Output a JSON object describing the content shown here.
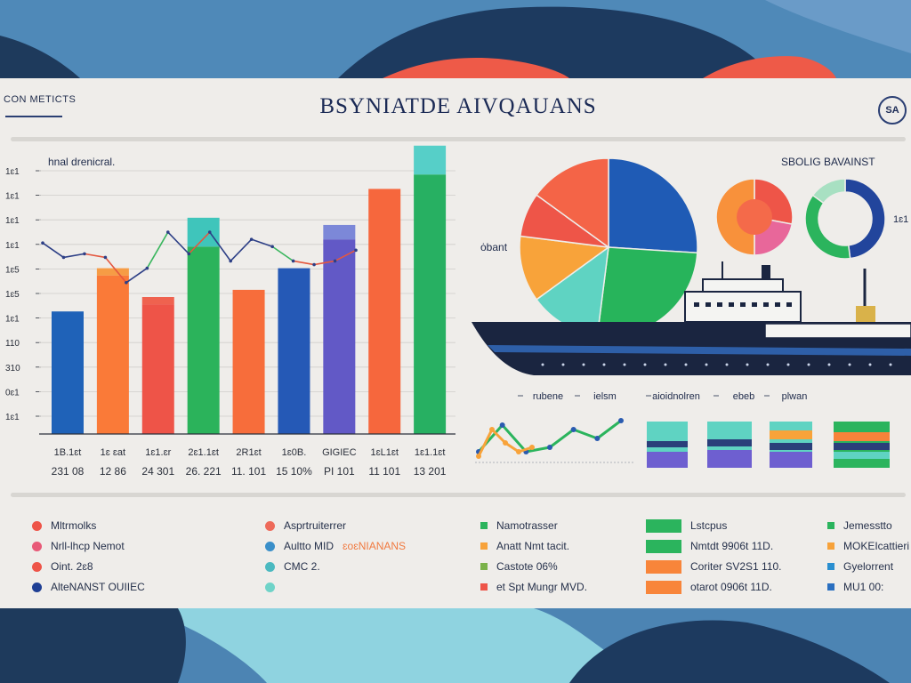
{
  "header": {
    "label": "CON METICTS",
    "title": "BSYNIATDE AIVQAUANS",
    "badge": "SA"
  },
  "bar_chart": {
    "title": "hnal drenicral.",
    "y_ticks": [
      "1ɛ1",
      "1ɛ1",
      "1ɛ1",
      "1ɛ1",
      "1ɛ5",
      "1ɛ5",
      "1ɛ1",
      "110",
      "310",
      "0ɛ1",
      "1ɛ1"
    ]
  },
  "right_panel": {
    "side_label": "ȯbant",
    "chart_title": "SBOLIG BAVAINST",
    "side_code": "1ɛ1",
    "bottom_labels": [
      "rubene",
      "ielsm",
      "aioidnolren",
      "ebeb",
      "plwan"
    ]
  },
  "chart_data": [
    {
      "type": "bar",
      "title": "hnal drenicral.",
      "categories": [
        "1B.1ɛt",
        "1ɛ ɛat",
        "1ɛ1.ɛr",
        "2ɛ1.1ɛt",
        "2R1ɛt",
        "1ɛ0B.",
        "GIGIEC",
        "1ɛL1ɛt",
        "1ɛ1.1ɛt"
      ],
      "categories_line2": [
        "231 08",
        "12 86",
        "24 301",
        "26. 221",
        "11. 101",
        "15 10%",
        "PI 101",
        "11 101",
        "13 201"
      ],
      "series": [
        {
          "values": [
            17,
            22,
            18,
            26,
            20,
            23,
            27,
            34,
            36
          ]
        },
        {
          "values": [
            0,
            1,
            1,
            4,
            0,
            0,
            2,
            0,
            4
          ]
        }
      ],
      "colors_primary": [
        "#1f62b8",
        "#fa7a38",
        "#ee5448",
        "#2bb35b",
        "#f76d3b",
        "#2559b6",
        "#6259c6",
        "#f6673d",
        "#27b062"
      ],
      "colors_top": [
        "#1f62b8",
        "#f69c45",
        "#ef624f",
        "#3fc5bb",
        "#f76d3b",
        "#2559b6",
        "#7c88d8",
        "#f6673d",
        "#56cfc8"
      ],
      "ylim": [
        0,
        38
      ],
      "overlay_line": {
        "points": [
          26.5,
          24.5,
          25,
          24.5,
          21,
          23,
          28,
          25,
          28,
          24,
          27,
          26,
          24,
          23.5,
          24,
          25.5
        ],
        "colors": [
          "#2d3f86",
          "#2d3f86",
          "#e4573f",
          "#e4573f",
          "#2d3f86",
          "#3ab65e",
          "#2d3f86",
          "#e4573f",
          "#2d3f86",
          "#2d3f86",
          "#2d3f86",
          "#3ab65e",
          "#e4573f",
          "#e4573f",
          "#e4573f"
        ]
      }
    },
    {
      "type": "pie",
      "values": [
        26,
        26,
        13,
        12,
        8,
        15
      ],
      "colors": [
        "#1f5bb5",
        "#27b45b",
        "#5fd3c2",
        "#f8a33a",
        "#ee5548",
        "#f46447"
      ]
    },
    {
      "type": "pie",
      "values": [
        28,
        22,
        50
      ],
      "colors": [
        "#ee5548",
        "#e8679a",
        "#f8913b"
      ]
    },
    {
      "type": "pie",
      "values": [
        48,
        37,
        15
      ],
      "colors": [
        "#22459c",
        "#2bb45d",
        "#a8e0c2"
      ]
    },
    {
      "type": "line",
      "series": [
        {
          "values": [
            2,
            8,
            2,
            3,
            7,
            5,
            9
          ],
          "color": "#2bb45d"
        },
        {
          "values": [
            1,
            7,
            4,
            2,
            3
          ],
          "color": "#f8a33a"
        }
      ],
      "ylim": [
        0,
        10
      ]
    }
  ],
  "legend": {
    "col1": [
      "Mltrmolks",
      "Nrll-lhcp Nemot",
      "Oint. 2ɛ8",
      "AlteNANST OUIIEC"
    ],
    "col2": [
      "Asprtruiterrer",
      "Aultto MID",
      "CMC 2."
    ],
    "col2_accent": "ɛoɛNIANANS",
    "col3": [
      "Namotrasser",
      "Anatt Nmt tacit.",
      "Castote 06%",
      "et Spt Mungr MVD."
    ],
    "col4": [
      "Lstcpus",
      "Nmtdt 9906t 11D.",
      "Coriter SV2S1 110.",
      "otarot 0906t 11D."
    ],
    "col5": [
      "Jemesstto",
      "MOKEIcattieri",
      "Gyelorrent",
      "MU1 00:"
    ],
    "colors": {
      "col1": [
        "#ee5448",
        "#e85a78",
        "#ee5448",
        "#1f3f94"
      ],
      "col2": [
        "#ee6a5a",
        "#3a8fc9",
        "#4bb9c0",
        "#6fd3c8"
      ],
      "col3": [
        "#2bb45d",
        "#f7a23a",
        "#7bb24a",
        "#ee5448"
      ],
      "col4": [
        "#2bb45d",
        "#2bb45d",
        "#f8853a",
        "#f8853a"
      ],
      "col5": [
        "#2bb45d",
        "#f7a23a",
        "#2a8fd0",
        "#2a6fc0"
      ],
      "accent": "#f07a40"
    }
  }
}
